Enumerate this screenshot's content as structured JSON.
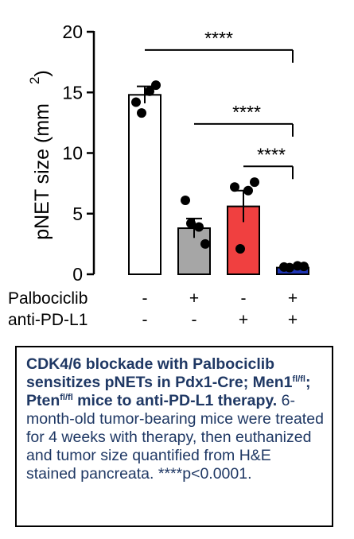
{
  "chart_data": {
    "type": "bar",
    "ylabel": "pNET size (mm 2)",
    "ylabel_main": "pNET size (mm",
    "ylabel_sup": "2",
    "ylabel_close": ")",
    "ylim": [
      0,
      20
    ],
    "yticks": [
      0,
      5,
      10,
      15,
      20
    ],
    "grid": false,
    "bars": [
      {
        "mean": 14.8,
        "sem": 0.7,
        "color": "#ffffff",
        "points": [
          14.2,
          15.1,
          15.6,
          13.3
        ]
      },
      {
        "mean": 3.8,
        "sem": 0.8,
        "color": "#a6a6a6",
        "points": [
          6.1,
          3.9,
          2.5,
          4.2
        ]
      },
      {
        "mean": 5.6,
        "sem": 1.3,
        "color": "#f04040",
        "points": [
          7.2,
          6.9,
          7.6,
          2.1
        ]
      },
      {
        "mean": 0.55,
        "sem": 0.05,
        "color": "#2035b4",
        "points": [
          0.6,
          0.7,
          0.65,
          0.55
        ]
      }
    ],
    "treatment_rows": [
      {
        "label": "Palbociclib",
        "values": [
          "-",
          "+",
          "-",
          "+"
        ]
      },
      {
        "label": "anti-PD-L1",
        "values": [
          "-",
          "-",
          "+",
          "+"
        ]
      }
    ],
    "significance": [
      {
        "from": 0,
        "to": 3,
        "text": "****",
        "y": 18.5
      },
      {
        "from": 1,
        "to": 3,
        "text": "****",
        "y": 12.4
      },
      {
        "from": 2,
        "to": 3,
        "text": "****",
        "y": 8.9
      }
    ]
  },
  "caption": {
    "bold_part1": "CDK4/6 blockade with Palbociclib sensitizes pNETs in Pdx1-Cre; Men1",
    "sup1": "fl/fl",
    "bold_part2": "; Pten",
    "sup2": "fl/fl",
    "bold_part3": " mice to anti-PD-L1 therapy.",
    "text": " 6-month-old tumor-bearing mice were treated for 4 weeks with therapy, then euthanized and tumor size quantified from H&E stained pancreata. ****p<0.0001."
  }
}
